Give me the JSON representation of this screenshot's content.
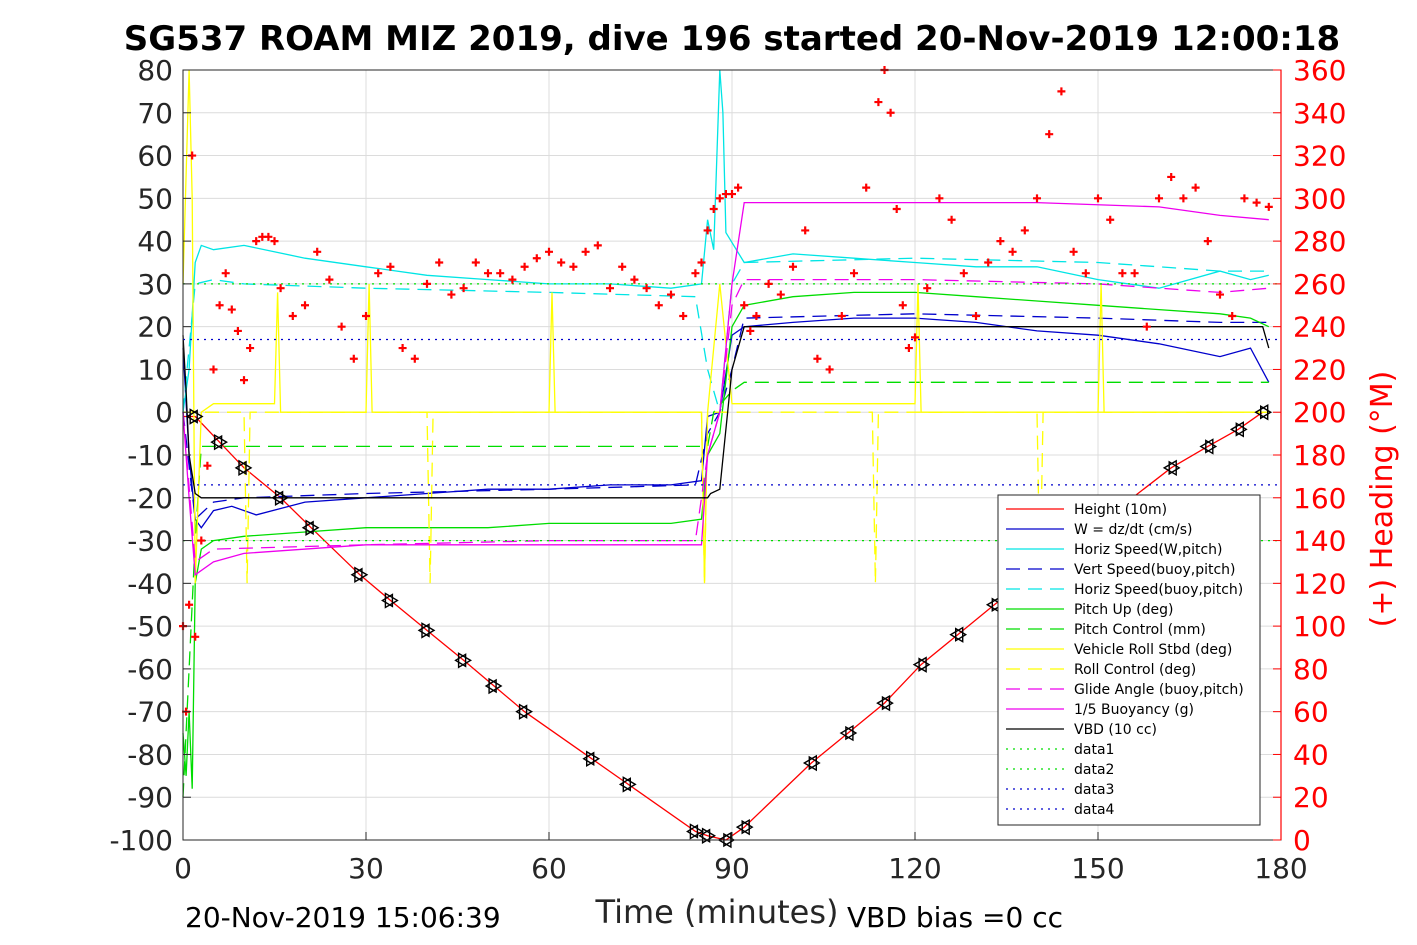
{
  "chart_data": {
    "type": "line",
    "title": "SG537 ROAM MIZ 2019, dive 196 started 20-Nov-2019 12:00:18",
    "xlabel": "Time (minutes)",
    "ylabel_right": "(+) Heading (°M)",
    "footer_left": "20-Nov-2019 15:06:39",
    "footer_right": "VBD bias =0 cc",
    "xlim": [
      0,
      180
    ],
    "ylim": [
      -100,
      80
    ],
    "ylim_right": [
      0,
      360
    ],
    "xticks": [
      "0",
      "30",
      "60",
      "90",
      "120",
      "150",
      "180"
    ],
    "yticks": [
      "80",
      "70",
      "60",
      "50",
      "40",
      "30",
      "20",
      "10",
      "0",
      "-10",
      "-20",
      "-30",
      "-40",
      "-50",
      "-60",
      "-70",
      "-80",
      "-90",
      "-100"
    ],
    "yticks_right": [
      "360",
      "340",
      "320",
      "300",
      "280",
      "260",
      "240",
      "220",
      "200",
      "180",
      "160",
      "140",
      "120",
      "100",
      "80",
      "60",
      "40",
      "20",
      "0"
    ],
    "grid": true,
    "legend_position": "bottom-right",
    "legend": [
      {
        "label": "Height (10m)",
        "color": "#ff0000",
        "dash": "solid"
      },
      {
        "label": "W = dz/dt (cm/s)",
        "color": "#0000cc",
        "dash": "solid"
      },
      {
        "label": "Horiz Speed(W,pitch)",
        "color": "#00e5e5",
        "dash": "solid"
      },
      {
        "label": "Vert Speed(buoy,pitch)",
        "color": "#0000cc",
        "dash": "dashed"
      },
      {
        "label": "Horiz Speed(buoy,pitch)",
        "color": "#00e5e5",
        "dash": "dashed"
      },
      {
        "label": "Pitch Up (deg)",
        "color": "#00dd00",
        "dash": "solid"
      },
      {
        "label": "Pitch Control (mm)",
        "color": "#00dd00",
        "dash": "dashed"
      },
      {
        "label": "Vehicle Roll Stbd (deg)",
        "color": "#ffff00",
        "dash": "solid"
      },
      {
        "label": "Roll Control (deg)",
        "color": "#ffff00",
        "dash": "dashed"
      },
      {
        "label": "Glide Angle (buoy,pitch)",
        "color": "#ee00ee",
        "dash": "dashed"
      },
      {
        "label": "1/5 Buoyancy (g)",
        "color": "#ee00ee",
        "dash": "solid"
      },
      {
        "label": "VBD (10 cc)",
        "color": "#000000",
        "dash": "solid"
      },
      {
        "label": "data1",
        "color": "#00dd00",
        "dash": "dotted"
      },
      {
        "label": "data2",
        "color": "#00dd00",
        "dash": "dotted"
      },
      {
        "label": "data3",
        "color": "#0000cc",
        "dash": "dotted"
      },
      {
        "label": "data4",
        "color": "#0000cc",
        "dash": "dotted"
      }
    ],
    "series": [
      {
        "name": "Height (10m)",
        "color": "#ff0000",
        "dash": "solid",
        "x": [
          0,
          2,
          6,
          10,
          16,
          21,
          29,
          34,
          40,
          46,
          51,
          56,
          67,
          73,
          84,
          86,
          89,
          92,
          103,
          109,
          115,
          121,
          127,
          133,
          162,
          168,
          173,
          177
        ],
        "y": [
          -1,
          -1,
          -7,
          -13,
          -20,
          -27,
          -38,
          -44,
          -51,
          -58,
          -64,
          -70,
          -81,
          -87,
          -98,
          -99,
          -100,
          -97,
          -82,
          -75,
          -68,
          -59,
          -52,
          -45,
          -13,
          -8,
          -4,
          0
        ]
      },
      {
        "name": "W = dz/dt (cm/s)",
        "color": "#0000cc",
        "dash": "solid",
        "x": [
          0,
          1,
          2,
          3,
          5,
          8,
          12,
          20,
          30,
          40,
          50,
          60,
          70,
          80,
          85,
          86,
          88,
          90,
          92,
          100,
          110,
          120,
          130,
          140,
          150,
          160,
          170,
          175,
          178
        ],
        "y": [
          15,
          -10,
          -25,
          -27,
          -23,
          -22,
          -24,
          -21,
          -20,
          -19,
          -18,
          -18,
          -17,
          -17,
          -16,
          -1,
          0,
          18,
          20,
          21,
          22,
          22,
          21,
          19,
          18,
          16,
          13,
          15,
          7
        ]
      },
      {
        "name": "Horiz Speed(W,pitch)",
        "color": "#00e5e5",
        "dash": "solid",
        "x": [
          0,
          1,
          2,
          3,
          5,
          10,
          20,
          30,
          40,
          50,
          60,
          70,
          80,
          85,
          86,
          87,
          88,
          88.5,
          89,
          92,
          100,
          110,
          120,
          130,
          140,
          150,
          160,
          170,
          175,
          178
        ],
        "y": [
          0,
          10,
          35,
          39,
          38,
          39,
          36,
          34,
          32,
          31,
          30,
          30,
          29,
          30,
          45,
          38,
          80,
          70,
          42,
          35,
          37,
          36,
          35,
          34,
          34,
          31,
          29,
          33,
          31,
          32
        ]
      },
      {
        "name": "Vert Speed(buoy,pitch)",
        "color": "#0000cc",
        "dash": "dashed",
        "x": [
          0,
          2,
          5,
          10,
          30,
          60,
          84,
          86,
          88,
          90,
          92,
          120,
          150,
          170,
          178
        ],
        "y": [
          0,
          -25,
          -21,
          -20,
          -19,
          -18,
          -17,
          -5,
          0,
          10,
          22,
          23,
          22,
          21,
          21
        ]
      },
      {
        "name": "Horiz Speed(buoy,pitch)",
        "color": "#00e5e5",
        "dash": "dashed",
        "x": [
          0,
          2,
          5,
          10,
          30,
          60,
          84,
          86,
          88,
          90,
          92,
          120,
          150,
          170,
          178
        ],
        "y": [
          0,
          30,
          31,
          30,
          29,
          28,
          27,
          10,
          0,
          30,
          35,
          36,
          35,
          33,
          33
        ]
      },
      {
        "name": "Pitch Up (deg)",
        "color": "#00dd00",
        "dash": "solid",
        "x": [
          0,
          0.5,
          1,
          1.5,
          2,
          3,
          5,
          10,
          20,
          30,
          40,
          50,
          60,
          70,
          80,
          85,
          86,
          88,
          90,
          92,
          100,
          110,
          120,
          130,
          140,
          150,
          160,
          170,
          175,
          178
        ],
        "y": [
          -75,
          -85,
          -70,
          -88,
          -40,
          -32,
          -30,
          -29,
          -28,
          -27,
          -27,
          -27,
          -26,
          -26,
          -26,
          -25,
          -10,
          -5,
          20,
          25,
          27,
          28,
          28,
          27,
          26,
          25,
          24,
          23,
          22,
          20
        ]
      },
      {
        "name": "Pitch Control (mm)",
        "color": "#00dd00",
        "dash": "dashed",
        "x": [
          0,
          2,
          3,
          86,
          87,
          90,
          92,
          178
        ],
        "y": [
          -90,
          -30,
          -8,
          -8,
          0,
          5,
          7,
          7
        ]
      },
      {
        "name": "Vehicle Roll Stbd (deg)",
        "color": "#ffff00",
        "dash": "solid",
        "x": [
          0,
          1,
          1.5,
          2,
          3,
          5,
          15,
          15.5,
          16,
          30,
          30.5,
          31,
          60,
          60.5,
          61,
          85,
          85.5,
          86,
          88,
          90,
          92,
          120,
          120.5,
          121,
          150,
          150.5,
          151,
          178
        ],
        "y": [
          30,
          80,
          50,
          -40,
          0,
          2,
          2,
          28,
          0,
          0,
          30,
          0,
          0,
          28,
          0,
          0,
          -40,
          0,
          30,
          2,
          2,
          2,
          30,
          0,
          0,
          30,
          0,
          0
        ]
      },
      {
        "name": "Roll Control (deg)",
        "color": "#ffff00",
        "dash": "dashed",
        "x": [
          0,
          3,
          10,
          10.5,
          11,
          40,
          40.5,
          41,
          85,
          85.5,
          86,
          113,
          113.5,
          114,
          140,
          140.5,
          141,
          178
        ],
        "y": [
          0,
          0,
          0,
          -40,
          0,
          0,
          -40,
          0,
          0,
          -40,
          0,
          0,
          -40,
          0,
          0,
          -40,
          0,
          0
        ]
      },
      {
        "name": "Glide Angle (buoy,pitch)",
        "color": "#ee00ee",
        "dash": "dashed",
        "x": [
          0,
          2,
          5,
          30,
          60,
          84,
          86,
          88,
          90,
          92,
          120,
          150,
          170,
          178
        ],
        "y": [
          0,
          -35,
          -32,
          -31,
          -30,
          -30,
          -10,
          0,
          25,
          31,
          31,
          30,
          28,
          29
        ]
      },
      {
        "name": "1/5 Buoyancy (g)",
        "color": "#ee00ee",
        "dash": "solid",
        "x": [
          0,
          1,
          2,
          5,
          10,
          30,
          60,
          85,
          86,
          88,
          90,
          92,
          120,
          140,
          160,
          170,
          178
        ],
        "y": [
          0,
          -20,
          -38,
          -35,
          -33,
          -31,
          -31,
          -31,
          -10,
          0,
          30,
          49,
          49,
          49,
          48,
          46,
          45
        ]
      },
      {
        "name": "VBD (10 cc)",
        "color": "#000000",
        "dash": "solid",
        "x": [
          0,
          0.5,
          1,
          2,
          3,
          86,
          86.5,
          88,
          90,
          92,
          177,
          178
        ],
        "y": [
          18,
          5,
          -10,
          -19,
          -20,
          -20,
          -19,
          -18,
          10,
          20,
          20,
          15
        ]
      },
      {
        "name": "data1",
        "color": "#00dd00",
        "dash": "dotted",
        "x": [
          0,
          180
        ],
        "y": [
          30,
          30
        ]
      },
      {
        "name": "data2",
        "color": "#00dd00",
        "dash": "dotted",
        "x": [
          0,
          180
        ],
        "y": [
          -30,
          -30
        ]
      },
      {
        "name": "data3",
        "color": "#0000cc",
        "dash": "dotted",
        "x": [
          0,
          180
        ],
        "y": [
          17,
          17
        ]
      },
      {
        "name": "data4",
        "color": "#0000cc",
        "dash": "dotted",
        "x": [
          0,
          180
        ],
        "y": [
          -17,
          -17
        ]
      }
    ],
    "heading": {
      "name": "(+) Heading (°M)",
      "color": "#ff0000",
      "marker": "+",
      "axis": "right",
      "x": [
        0,
        0.5,
        1,
        1.5,
        2,
        3,
        4,
        5,
        6,
        7,
        8,
        9,
        10,
        11,
        12,
        13,
        14,
        15,
        16,
        18,
        20,
        22,
        24,
        26,
        28,
        30,
        32,
        34,
        36,
        38,
        40,
        42,
        44,
        46,
        48,
        50,
        52,
        54,
        56,
        58,
        60,
        62,
        64,
        66,
        68,
        70,
        72,
        74,
        76,
        78,
        80,
        82,
        84,
        85,
        86,
        87,
        88,
        89,
        90,
        91,
        92,
        93,
        94,
        96,
        98,
        100,
        102,
        104,
        106,
        108,
        110,
        112,
        114,
        115,
        116,
        117,
        118,
        119,
        120,
        122,
        124,
        126,
        128,
        130,
        132,
        134,
        136,
        138,
        140,
        142,
        144,
        146,
        148,
        150,
        152,
        154,
        156,
        158,
        160,
        162,
        164,
        166,
        168,
        170,
        172,
        174,
        176,
        178
      ],
      "y": [
        100,
        60,
        110,
        320,
        95,
        140,
        175,
        220,
        250,
        265,
        248,
        238,
        215,
        230,
        280,
        282,
        282,
        280,
        258,
        245,
        250,
        275,
        262,
        240,
        225,
        245,
        265,
        268,
        230,
        225,
        260,
        270,
        255,
        258,
        270,
        265,
        265,
        262,
        268,
        272,
        275,
        270,
        268,
        275,
        278,
        258,
        268,
        262,
        258,
        250,
        255,
        245,
        265,
        270,
        285,
        295,
        300,
        302,
        302,
        305,
        250,
        238,
        245,
        260,
        255,
        268,
        285,
        225,
        220,
        245,
        265,
        305,
        345,
        360,
        340,
        295,
        250,
        230,
        235,
        258,
        300,
        290,
        265,
        245,
        270,
        280,
        275,
        285,
        300,
        330,
        350,
        275,
        265,
        300,
        290,
        265,
        265,
        240,
        300,
        310,
        300,
        305,
        280,
        255,
        245,
        300,
        298,
        296
      ]
    }
  }
}
